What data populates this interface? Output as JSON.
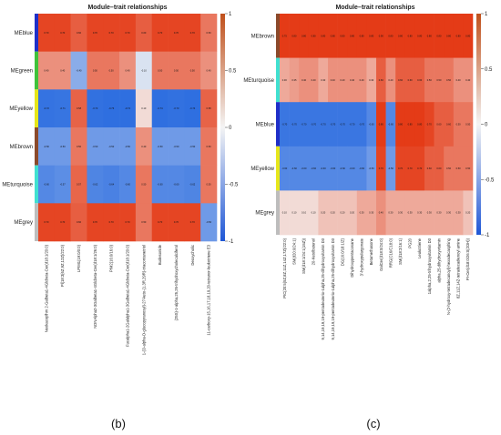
{
  "chart_data": [
    {
      "panel_label": "(b)",
      "type": "heatmap",
      "title": "Module–trait relationships",
      "rows": [
        "MEblue",
        "MEgreen",
        "MEyellow",
        "MEbrown",
        "MEturquoise",
        "MEgrey"
      ],
      "row_colors": [
        "#1f2fc8",
        "#3fc23a",
        "#e6e61a",
        "#8b4a2b",
        "#40e0d0",
        "#bdbdbd"
      ],
      "columns": [
        "Neokacoplhm 2-Galbeta1-4Glcbeta-Cer(d18:1/20:0)",
        "Pl(18:3(6Z,9Z,12Z)/22:0)",
        "LPIM1(19:0/0:0)",
        "NDNAlpha2-3Galbeta1-4Glcbeta-Cer(d18:1/26:0)",
        "PIM2(16:0/16:0)",
        "Fucalpha1-2Galalpha1-3Galbeta1-4Glcbeta-Cer(d18:1/20:0)",
        "1-(O-alpha-D-glucopyranosyl)-27-keto-(1,3R,29R)-triacontanetriol",
        "Budesonide",
        "(25S)-1-alpha,25,26-trihydroxycholecalciferol",
        "Deoxycholic",
        "11-carboxy-15,16,17,18,19,20-tetranor-leukotriene E3"
      ],
      "values": [
        [
          0.7,
          0.7,
          0.6,
          0.7,
          0.7,
          0.7,
          0.6,
          0.7,
          0.7,
          0.7,
          0.5
        ],
        [
          0.4,
          0.4,
          -0.4,
          0.5,
          0.5,
          0.4,
          -0.1,
          0.5,
          0.5,
          0.5,
          0.4
        ],
        [
          -0.72,
          -0.71,
          0.58,
          -0.73,
          -0.76,
          -0.74,
          0.1,
          -0.74,
          -0.73,
          -0.74,
          0.58
        ],
        [
          -0.5,
          -0.5,
          0.5,
          -0.5,
          -0.5,
          -0.5,
          0.4,
          -0.5,
          -0.5,
          -0.5,
          0.5
        ],
        [
          -0.6,
          -0.57,
          0.57,
          -0.62,
          -0.64,
          -0.6,
          0.5,
          -0.6,
          -0.6,
          -0.62,
          0.5
        ],
        [
          0.7,
          0.7,
          0.6,
          0.7,
          0.7,
          0.7,
          0.5,
          0.7,
          0.7,
          0.7,
          -0.5
        ]
      ],
      "colorbar_ticks": [
        "1",
        "0.5",
        "0",
        "-0.5",
        "-1"
      ],
      "color_scale": {
        "neg": "#2f6fe0",
        "mid": "#f4f4f4",
        "pos": "#e43b17"
      }
    },
    {
      "panel_label": "(c)",
      "type": "heatmap",
      "title": "Module–trait relationships",
      "rows": [
        "MEbrown",
        "MEturquoise",
        "MEblue",
        "MEyellow",
        "MEgrey"
      ],
      "row_colors": [
        "#8b4a2b",
        "#40e0d0",
        "#1f2fc8",
        "#e6e61a",
        "#bdbdbd"
      ],
      "columns": [
        "PIC(20:5(5Z,8Z,11Z,14Z,17Z)/22:0)",
        "SM(d20:0/24:1)",
        "SM(d18:1/24:1(15Z))",
        "20-Ketolbutenol",
        "9,14,19,19,19-pentadeuterio-1alpha,25-dihydroxyvitamin D3",
        "9,14,19,19,19-pentadeuterio-1alpha,25-dihydroxyvitamin D3",
        "DG(16:0/18:1/Z)",
        "Dihydroxypentacosane",
        "3'-hydroxypelargonate",
        "Betamethasone",
        "GalCer(d18:0/24:0)",
        "RRG(C16/C18:0)",
        "SM(d18:2/16:1)",
        "PG20",
        "Leukotriene",
        "1alpha,2,25-trihydroxyvitamin D3",
        "alpha,25-dihydroxyvitamin",
        "N-(2-hydroxy-tetradecanoyl)-hexadecasphing",
        "8Z,11Z,14Z-tetradecadienoyl amine",
        "PI-Cer(d18:0/26:0(2OH))"
      ],
      "values": [
        [
          0.75,
          0.8,
          0.8,
          0.8,
          0.8,
          0.8,
          0.8,
          0.8,
          0.8,
          0.8,
          0.9,
          0.8,
          0.8,
          0.8,
          0.8,
          0.8,
          0.8,
          0.8,
          0.8,
          0.8
        ],
        [
          0.3,
          0.35,
          0.4,
          0.4,
          0.3,
          0.4,
          0.4,
          0.4,
          0.4,
          0.3,
          0.6,
          0.4,
          0.6,
          0.6,
          0.6,
          0.5,
          0.5,
          0.5,
          0.4,
          0.4
        ],
        [
          -0.7,
          -0.7,
          -0.7,
          -0.7,
          -0.7,
          -0.7,
          -0.7,
          -0.7,
          -0.7,
          -0.6,
          0.8,
          -0.6,
          0.8,
          0.8,
          0.8,
          0.7,
          0.6,
          0.6,
          0.5,
          0.5
        ],
        [
          -0.6,
          -0.6,
          -0.6,
          -0.6,
          -0.6,
          -0.6,
          -0.6,
          -0.6,
          -0.6,
          -0.5,
          0.7,
          -0.5,
          0.7,
          0.7,
          0.7,
          0.6,
          0.6,
          0.5,
          0.5,
          0.5
        ],
        [
          0.1,
          0.1,
          0.1,
          0.1,
          0.2,
          0.2,
          0.2,
          0.2,
          0.3,
          0.3,
          0.4,
          0.3,
          0.3,
          0.3,
          0.3,
          0.3,
          0.3,
          0.3,
          0.3,
          0.2
        ]
      ],
      "colorbar_ticks": [
        "1",
        "0.5",
        "0",
        "-0.5",
        "-1"
      ],
      "color_scale": {
        "neg": "#2f6fe0",
        "mid": "#f4f4f4",
        "pos": "#e43b17"
      }
    }
  ]
}
